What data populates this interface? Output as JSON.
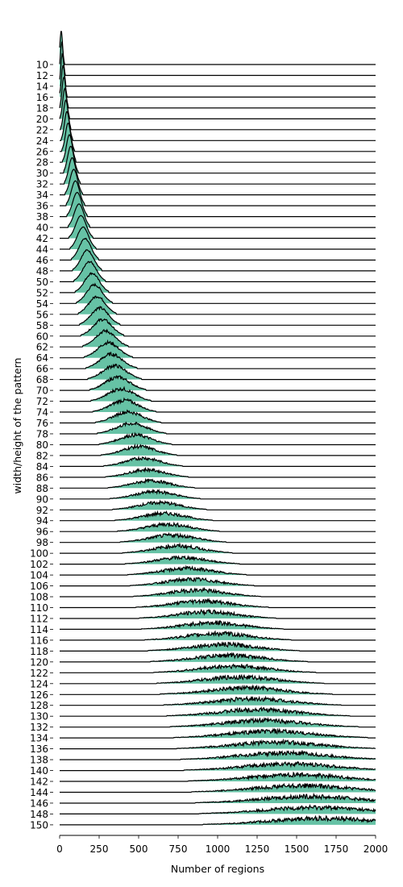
{
  "chart_data": {
    "type": "area",
    "subtype": "ridgeline",
    "xlabel": "Number of regions",
    "ylabel": "width/height of the pattern",
    "xlim": [
      0,
      2000
    ],
    "x_ticks": [
      0,
      250,
      500,
      750,
      1000,
      1250,
      1500,
      1750,
      2000
    ],
    "x_tick_labels": [
      "0",
      "250",
      "500",
      "750",
      "1000",
      "1250",
      "1500",
      "1750",
      "2000"
    ],
    "categories": [
      "10",
      "12",
      "14",
      "16",
      "18",
      "20",
      "22",
      "24",
      "26",
      "28",
      "30",
      "32",
      "34",
      "36",
      "38",
      "40",
      "42",
      "44",
      "46",
      "48",
      "50",
      "52",
      "54",
      "56",
      "58",
      "60",
      "62",
      "64",
      "66",
      "68",
      "70",
      "72",
      "74",
      "76",
      "78",
      "80",
      "82",
      "84",
      "86",
      "88",
      "90",
      "92",
      "94",
      "96",
      "98",
      "100",
      "102",
      "104",
      "106",
      "108",
      "110",
      "112",
      "114",
      "116",
      "118",
      "120",
      "122",
      "124",
      "126",
      "128",
      "130",
      "132",
      "134",
      "136",
      "138",
      "140",
      "142",
      "144",
      "146",
      "148",
      "150"
    ],
    "fill_color": "#66c2a5",
    "line_color": "#000000",
    "grid": false,
    "legend": "none"
  }
}
